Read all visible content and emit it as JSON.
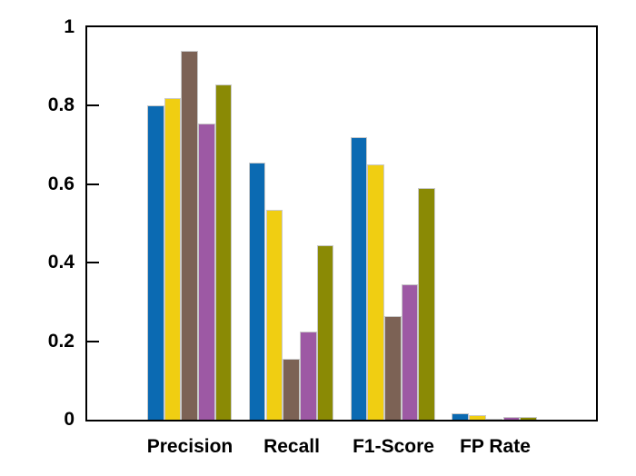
{
  "chart_data": {
    "type": "bar",
    "title": "",
    "xlabel": "",
    "ylabel": "",
    "categories": [
      "Precision",
      "Recall",
      "F1-Score",
      "FP Rate"
    ],
    "series": [
      {
        "name": "blue-series",
        "color": "#0b6ab2",
        "values": [
          0.8,
          0.655,
          0.72,
          0.017
        ]
      },
      {
        "name": "yellow-series",
        "color": "#f0ce12",
        "values": [
          0.82,
          0.535,
          0.65,
          0.012
        ]
      },
      {
        "name": "brown-series",
        "color": "#7c6255",
        "values": [
          0.94,
          0.155,
          0.265,
          0.002
        ]
      },
      {
        "name": "purple-series",
        "color": "#9d59a4",
        "values": [
          0.755,
          0.225,
          0.345,
          0.008
        ]
      },
      {
        "name": "olive-series",
        "color": "#8a8a05",
        "values": [
          0.855,
          0.445,
          0.59,
          0.008
        ]
      }
    ],
    "ylim": [
      0,
      1
    ],
    "yticks": [
      0,
      0.2,
      0.4,
      0.6,
      0.8,
      1
    ],
    "ytick_labels": [
      "0",
      "0.2",
      "0.4",
      "0.6",
      "0.8",
      "1"
    ],
    "grid": false,
    "legend": null,
    "axis_color": "#000000",
    "bar_edge_color": "#c9c9c9",
    "background_color": "#ffffff"
  }
}
